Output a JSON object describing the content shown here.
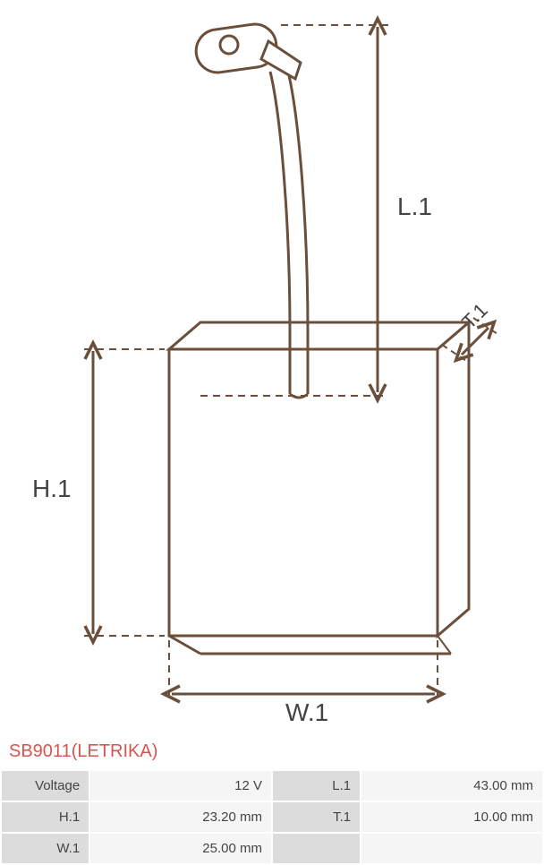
{
  "product": {
    "title": "SB9011(LETRIKA)"
  },
  "specs": {
    "rows": [
      {
        "label1": "Voltage",
        "value1": "12 V",
        "label2": "L.1",
        "value2": "43.00 mm"
      },
      {
        "label1": "H.1",
        "value1": "23.20 mm",
        "label2": "T.1",
        "value2": "10.00 mm"
      },
      {
        "label1": "W.1",
        "value1": "25.00 mm",
        "label2": "",
        "value2": ""
      }
    ]
  },
  "diagram": {
    "labels": {
      "L1": "L.1",
      "H1": "H.1",
      "W1": "W.1",
      "T1": "T.1"
    },
    "colors": {
      "stroke": "#6b4f3b",
      "stroke_light": "#8a6a52",
      "fill": "#ffffff",
      "text": "#444444"
    },
    "stroke_width": 3,
    "label_fontsize": 28
  }
}
